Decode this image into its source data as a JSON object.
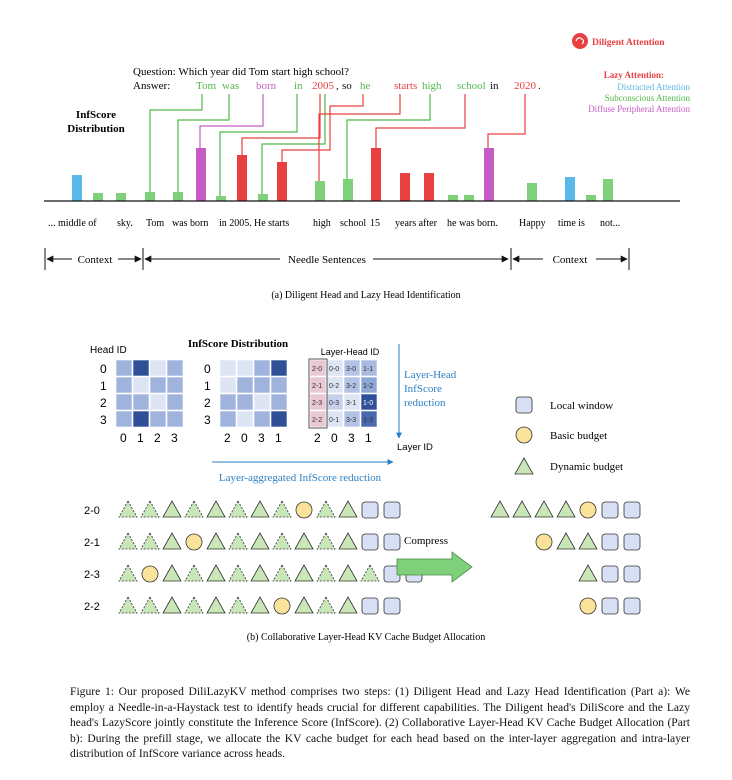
{
  "legend_a": {
    "diligent": "Diligent Attention",
    "lazy": "Lazy Attention:",
    "distracted": "Distracted Attention",
    "subconscious": "Subconscious Attention",
    "diffuse": "Diffuse Peripheral Attention"
  },
  "question": "Question: Which year did Tom start high school?",
  "answer_label": "Answer:",
  "answer_words": [
    "Tom",
    "was",
    "born",
    "in",
    "2005",
    ",",
    "so",
    "he",
    "starts",
    "high",
    "school",
    "in",
    "2020",
    "."
  ],
  "infscore_title_a": [
    "InfScore",
    "Distribution"
  ],
  "tokens": [
    "... middle of",
    "sky.",
    "Tom",
    "was born",
    "in 2005.",
    "He starts",
    "high",
    "school",
    "15",
    "years after",
    "he was born.",
    "Happy",
    "time is",
    "not..."
  ],
  "segments": [
    "Context",
    "Needle Sentences",
    "Context"
  ],
  "caption_a": "(a) Diligent Head and Lazy Head Identification",
  "head_id_label": "Head ID",
  "infscore_title_b": "InfScore Distribution",
  "layer_head_id_label": "Layer-Head ID",
  "grid1_row_labels": [
    "0",
    "1",
    "2",
    "3"
  ],
  "grid1_col_labels": [
    "0",
    "1",
    "2",
    "3"
  ],
  "grid2_row_labels": [
    "0",
    "1",
    "2",
    "3"
  ],
  "grid2_col_labels": [
    "2",
    "0",
    "3",
    "1"
  ],
  "grid3_cells": [
    [
      "2-0",
      "0-0",
      "3-0",
      "1-1"
    ],
    [
      "2-1",
      "0-2",
      "3-2",
      "1-2"
    ],
    [
      "2-3",
      "0-3",
      "3-1",
      "1-0"
    ],
    [
      "2-2",
      "0-1",
      "3-3",
      "1-3"
    ]
  ],
  "grid3_col_labels": [
    "2",
    "0",
    "3",
    "1"
  ],
  "layer_id_label": "Layer ID",
  "reduction_vertical": [
    "Layer-Head",
    "InfScore",
    "reduction"
  ],
  "reduction_horizontal": "Layer-aggregated InfScore reduction",
  "legend_b": {
    "local": "Local window",
    "basic": "Basic budget",
    "dynamic": "Dynamic budget"
  },
  "alloc_rows": [
    {
      "label": "2-0",
      "full": "ltttttttcttgg",
      "comp": "ttttcgg"
    },
    {
      "label": "2-1",
      "full": "lttctttttttgg",
      "comp": "cttgg"
    },
    {
      "label": "2-3",
      "full": "lcttttttttttgg",
      "comp": "tgg"
    },
    {
      "label": "2-2",
      "full": "lttttttctttgg",
      "comp": "cgg"
    }
  ],
  "compress_label": "Compress",
  "caption_b": "(b) Collaborative Layer-Head KV Cache Budget Allocation",
  "figure_caption": "Figure 1: Our proposed DiliLazyKV method comprises two steps: (1) Diligent Head and Lazy Head Identification (Part a): We employ a Needle-in-a-Haystack test to identify heads crucial for different capabilities. The Diligent head's DiliScore and the Lazy head's LazyScore jointly constitute the Inference Score (InfScore). (2) Collaborative Layer-Head KV Cache Budget Allocation (Part b): During the prefill stage, we allocate the KV cache budget for each head based on the inter-layer aggregation and intra-layer distribution of InfScore variance across heads.",
  "colors": {
    "red": "#e84040",
    "green": "#7ed07a",
    "blue": "#5bb8e8",
    "purple": "#c45cc4",
    "answer_green": "#52b84a",
    "cell_light": "#dde4f3",
    "cell_mid": "#9fb3dd",
    "cell_dark": "#2f4f96",
    "reduction_blue": "#2a7fc4",
    "shape_fill": "#d7e0f4",
    "circle_fill": "#fbe39a",
    "tri_fill": "#c9e6b8"
  }
}
